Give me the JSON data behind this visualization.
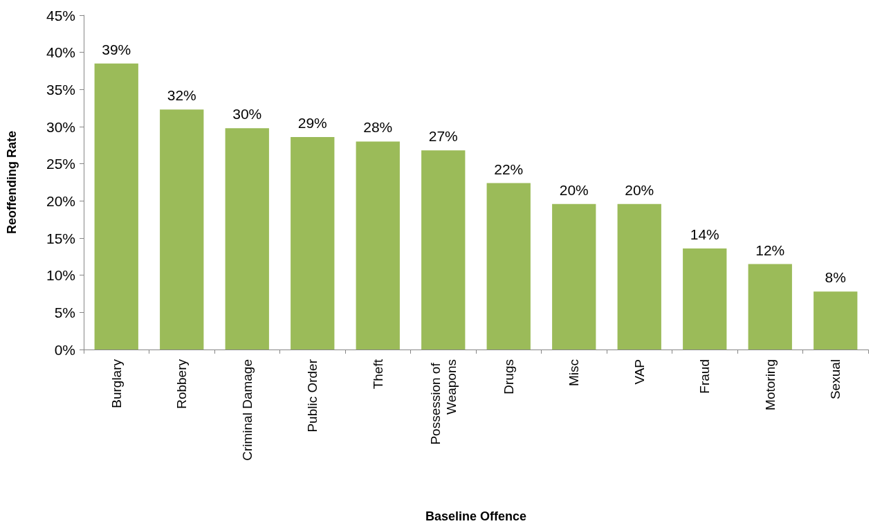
{
  "chart_data": {
    "type": "bar",
    "xlabel": "Baseline Offence",
    "ylabel": "Reoffending Rate",
    "categories": [
      "Burglary",
      "Robbery",
      "Criminal Damage",
      "Public Order",
      "Theft",
      "Possession of Weapons",
      "Drugs",
      "Misc",
      "VAP",
      "Fraud",
      "Motoring",
      "Sexual"
    ],
    "values": [
      38.5,
      32.3,
      29.8,
      28.6,
      28.0,
      26.8,
      22.4,
      19.6,
      19.6,
      13.6,
      11.5,
      7.8
    ],
    "value_labels": [
      "39%",
      "32%",
      "30%",
      "29%",
      "28%",
      "27%",
      "22%",
      "20%",
      "20%",
      "14%",
      "12%",
      "8%"
    ],
    "color": "#9bbb59",
    "ylim": [
      0,
      45
    ],
    "yticks": [
      {
        "value": 0,
        "label": "0%"
      },
      {
        "value": 5,
        "label": "5%"
      },
      {
        "value": 10,
        "label": "10%"
      },
      {
        "value": 15,
        "label": "15%"
      },
      {
        "value": 20,
        "label": "20%"
      },
      {
        "value": 25,
        "label": "25%"
      },
      {
        "value": 30,
        "label": "30%"
      },
      {
        "value": 35,
        "label": "35%"
      },
      {
        "value": 40,
        "label": "40%"
      },
      {
        "value": 45,
        "label": "45%"
      }
    ],
    "grid": false
  }
}
